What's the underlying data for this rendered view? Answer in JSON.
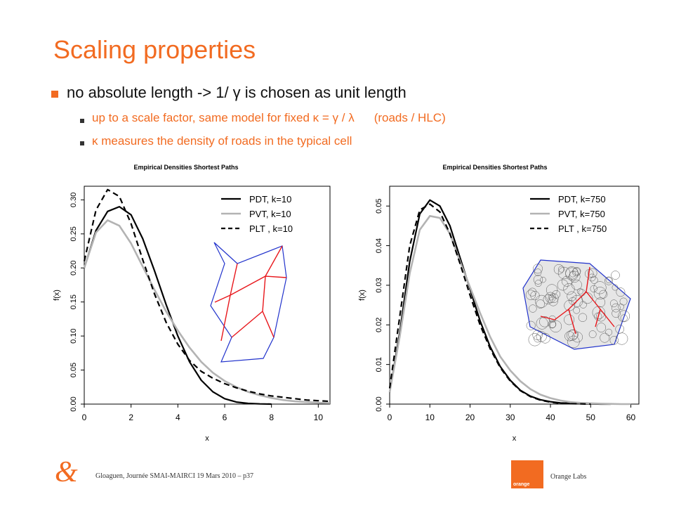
{
  "slide": {
    "title": "Scaling properties",
    "bullet1": "no absolute length -> 1/ γ  is chosen as unit length",
    "bullet2a": "up to a scale factor, same model for fixed κ = γ  / λ",
    "bullet2b": "(roads / HLC)",
    "bullet3": "κ measures the density of roads in the typical cell"
  },
  "footer": {
    "text": "Gloaguen, Journée SMAI-MAIRCI 19 Mars 2010 – p37",
    "logo_text": "orange",
    "labs_text": "Orange Labs",
    "ampersand": "&"
  },
  "colors": {
    "accent": "#f26b21",
    "series_black": "#000000",
    "series_gray": "#b3b3b3",
    "cell_border": "#2233cc",
    "road": "#e8161b"
  },
  "chart_data": [
    {
      "type": "line",
      "title": "Empirical Densities Shortest Paths",
      "xlabel": "x",
      "ylabel": "f(x)",
      "xlim": [
        0,
        10.5
      ],
      "ylim": [
        0,
        0.32
      ],
      "xticks": [
        0,
        2,
        4,
        6,
        8,
        10
      ],
      "yticks": [
        0.0,
        0.05,
        0.1,
        0.15,
        0.2,
        0.25,
        0.3
      ],
      "ytick_labels": [
        "0.00",
        "0.05",
        "0.10",
        "0.15",
        "0.20",
        "0.25",
        "0.30"
      ],
      "legend_position": "top-right",
      "inset": "single typical cell with roads",
      "series": [
        {
          "name": "PDT, k=10",
          "style": "solid",
          "color": "#000000",
          "x": [
            0,
            0.5,
            1,
            1.5,
            2,
            2.5,
            3,
            3.5,
            4,
            4.5,
            5,
            5.5,
            6,
            6.5,
            7,
            7.5,
            8
          ],
          "y": [
            0.2,
            0.255,
            0.283,
            0.29,
            0.278,
            0.243,
            0.196,
            0.146,
            0.1,
            0.062,
            0.035,
            0.018,
            0.008,
            0.003,
            0.001,
            0.0003,
            0.0
          ]
        },
        {
          "name": "PVT, k=10",
          "style": "solid",
          "color": "#b3b3b3",
          "x": [
            0,
            0.5,
            1,
            1.5,
            2,
            2.5,
            3,
            3.5,
            4,
            4.5,
            5,
            5.5,
            6,
            6.5,
            7,
            7.5,
            8,
            8.5,
            9,
            9.5,
            10,
            10.5
          ],
          "y": [
            0.2,
            0.252,
            0.27,
            0.262,
            0.236,
            0.202,
            0.168,
            0.136,
            0.108,
            0.083,
            0.062,
            0.046,
            0.034,
            0.025,
            0.018,
            0.013,
            0.009,
            0.006,
            0.004,
            0.003,
            0.002,
            0.0015
          ]
        },
        {
          "name": "PLT , k=10",
          "style": "dashed",
          "color": "#000000",
          "x": [
            0,
            0.5,
            1,
            1.5,
            2,
            2.5,
            3,
            3.5,
            4,
            4.5,
            5,
            5.5,
            6,
            6.5,
            7,
            7.5,
            8,
            8.5,
            9,
            9.5,
            10,
            10.5
          ],
          "y": [
            0.21,
            0.285,
            0.315,
            0.305,
            0.265,
            0.212,
            0.162,
            0.12,
            0.088,
            0.064,
            0.048,
            0.038,
            0.03,
            0.024,
            0.019,
            0.015,
            0.012,
            0.01,
            0.008,
            0.006,
            0.005,
            0.004
          ]
        }
      ]
    },
    {
      "type": "line",
      "title": "Empirical Densities Shortest Paths",
      "xlabel": "x",
      "ylabel": "f(x)",
      "xlim": [
        0,
        62
      ],
      "ylim": [
        0,
        0.055
      ],
      "xticks": [
        0,
        10,
        20,
        30,
        40,
        50,
        60
      ],
      "yticks": [
        0.0,
        0.01,
        0.02,
        0.03,
        0.04,
        0.05
      ],
      "ytick_labels": [
        "0.00",
        "0.01",
        "0.02",
        "0.03",
        "0.04",
        "0.05"
      ],
      "legend_position": "top-right",
      "inset": "large cell with Voronoi subdivision and roads",
      "series": [
        {
          "name": "PDT, k=750",
          "style": "solid",
          "color": "#000000",
          "x": [
            0,
            2.5,
            5,
            7.5,
            10,
            12.5,
            15,
            17.5,
            20,
            22.5,
            25,
            27.5,
            30,
            32.5,
            35,
            37.5,
            40,
            42.5,
            45,
            47.5,
            50,
            52.5,
            55
          ],
          "y": [
            0.003,
            0.018,
            0.036,
            0.048,
            0.0515,
            0.05,
            0.045,
            0.037,
            0.029,
            0.021,
            0.0145,
            0.0095,
            0.006,
            0.0035,
            0.002,
            0.0011,
            0.0006,
            0.0003,
            0.0002,
            0.0001,
            5e-05,
            0.0,
            0.0
          ]
        },
        {
          "name": "PVT, k=750",
          "style": "solid",
          "color": "#b3b3b3",
          "x": [
            0,
            2.5,
            5,
            7.5,
            10,
            12.5,
            15,
            17.5,
            20,
            22.5,
            25,
            27.5,
            30,
            32.5,
            35,
            37.5,
            40,
            42.5,
            45,
            47.5,
            50,
            52.5,
            55,
            57.5,
            60
          ],
          "y": [
            0.003,
            0.017,
            0.033,
            0.044,
            0.0475,
            0.047,
            0.043,
            0.036,
            0.0295,
            0.023,
            0.017,
            0.012,
            0.0085,
            0.0058,
            0.0038,
            0.0024,
            0.0015,
            0.0009,
            0.0005,
            0.0003,
            0.0002,
            0.0001,
            5e-05,
            0.0,
            0.0
          ]
        },
        {
          "name": "PLT , k=750",
          "style": "dashed",
          "color": "#000000",
          "x": [
            0,
            2.5,
            5,
            7.5,
            10,
            12.5,
            15,
            17.5,
            20,
            22.5,
            25,
            27.5,
            30,
            32.5,
            35,
            37.5,
            40,
            42.5,
            45,
            47.5,
            50
          ],
          "y": [
            0.004,
            0.022,
            0.04,
            0.049,
            0.0505,
            0.0485,
            0.043,
            0.0355,
            0.0275,
            0.02,
            0.014,
            0.0092,
            0.0058,
            0.0034,
            0.0019,
            0.001,
            0.0005,
            0.0002,
            0.0001,
            5e-05,
            0.0
          ]
        }
      ]
    }
  ]
}
